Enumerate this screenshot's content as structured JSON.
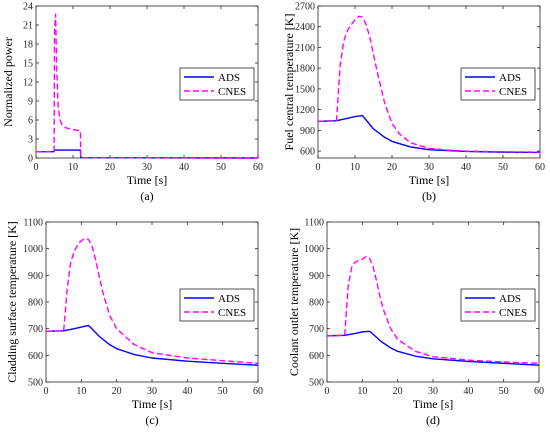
{
  "colors": {
    "ads": "#0000ff",
    "cnes": "#ff00ff",
    "axis": "#262626"
  },
  "legend": {
    "ads": "ADS",
    "cnes": "CNES"
  },
  "chart_data": [
    {
      "type": "line",
      "sublabel": "(a)",
      "xlabel": "Time [s]",
      "ylabel": "Normalized power",
      "xlim": [
        0,
        60
      ],
      "ylim": [
        0,
        24
      ],
      "xticks": [
        "0",
        "10",
        "20",
        "30",
        "40",
        "50",
        "60"
      ],
      "yticks": [
        "0",
        "3",
        "6",
        "9",
        "12",
        "15",
        "18",
        "21",
        "24"
      ],
      "series": [
        {
          "name": "ADS",
          "style": "solid",
          "x": [
            0,
            4.9,
            5.0,
            12.0,
            12.1,
            60
          ],
          "y": [
            1,
            1,
            1.25,
            1.25,
            0.05,
            0.0
          ]
        },
        {
          "name": "CNES",
          "style": "dashed",
          "x": [
            0,
            4.9,
            5.0,
            5.3,
            5.6,
            6.0,
            6.5,
            7.0,
            8.0,
            9.0,
            10.0,
            12.0,
            12.1,
            20,
            60
          ],
          "y": [
            1,
            1,
            20,
            22.7,
            14,
            8,
            6,
            5.3,
            4.8,
            4.6,
            4.5,
            4.3,
            0.05,
            0.05,
            0.0
          ]
        }
      ]
    },
    {
      "type": "line",
      "sublabel": "(b)",
      "xlabel": "Time [s]",
      "ylabel": "Fuel central temperature [K]",
      "xlim": [
        0,
        60
      ],
      "ylim": [
        500,
        2700
      ],
      "xticks": [
        "0",
        "10",
        "20",
        "30",
        "40",
        "50",
        "60"
      ],
      "yticks": [
        "600",
        "900",
        "1200",
        "1500",
        "1800",
        "2100",
        "2400",
        "2700"
      ],
      "series": [
        {
          "name": "ADS",
          "style": "solid",
          "x": [
            0,
            5,
            8,
            10,
            12,
            13,
            15,
            18,
            20,
            25,
            30,
            40,
            50,
            60
          ],
          "y": [
            1030,
            1040,
            1075,
            1100,
            1115,
            1050,
            920,
            800,
            740,
            660,
            620,
            595,
            585,
            580
          ]
        },
        {
          "name": "CNES",
          "style": "dashed",
          "x": [
            0,
            5,
            6,
            7,
            8,
            9,
            10,
            11,
            12,
            13,
            14,
            15,
            16,
            18,
            20,
            22,
            25,
            30,
            35,
            40,
            50,
            60
          ],
          "y": [
            1030,
            1040,
            1850,
            2200,
            2350,
            2430,
            2500,
            2550,
            2540,
            2430,
            2250,
            2000,
            1750,
            1300,
            1000,
            850,
            720,
            640,
            615,
            600,
            590,
            585
          ]
        }
      ]
    },
    {
      "type": "line",
      "sublabel": "(c)",
      "xlabel": "Time [s]",
      "ylabel": "Cladding surface temperature [K]",
      "xlim": [
        0,
        60
      ],
      "ylim": [
        500,
        1100
      ],
      "xticks": [
        "0",
        "10",
        "20",
        "30",
        "40",
        "50",
        "60"
      ],
      "yticks": [
        "500",
        "600",
        "700",
        "800",
        "900",
        "1000",
        "1100"
      ],
      "series": [
        {
          "name": "ADS",
          "style": "solid",
          "x": [
            0,
            5,
            8,
            10,
            12,
            13,
            15,
            18,
            20,
            25,
            30,
            40,
            50,
            60
          ],
          "y": [
            690,
            692,
            700,
            706,
            712,
            700,
            672,
            640,
            625,
            603,
            590,
            578,
            570,
            563
          ]
        },
        {
          "name": "CNES",
          "style": "dashed",
          "x": [
            0,
            5,
            6,
            7,
            8,
            9,
            10,
            11,
            12,
            13,
            14,
            15,
            16,
            18,
            20,
            25,
            30,
            40,
            50,
            60
          ],
          "y": [
            690,
            692,
            850,
            950,
            990,
            1015,
            1030,
            1038,
            1035,
            1010,
            960,
            900,
            840,
            750,
            700,
            640,
            610,
            590,
            580,
            570
          ]
        }
      ]
    },
    {
      "type": "line",
      "sublabel": "(d)",
      "xlabel": "Time [s]",
      "ylabel": "Coolant outlet temperature [K]",
      "xlim": [
        0,
        60
      ],
      "ylim": [
        500,
        1100
      ],
      "xticks": [
        "0",
        "10",
        "20",
        "30",
        "40",
        "50",
        "60"
      ],
      "yticks": [
        "500",
        "600",
        "700",
        "800",
        "900",
        "1000",
        "1100"
      ],
      "series": [
        {
          "name": "ADS",
          "style": "solid",
          "x": [
            0,
            5,
            8,
            10,
            12,
            13,
            15,
            18,
            20,
            25,
            30,
            40,
            50,
            60
          ],
          "y": [
            673,
            675,
            682,
            688,
            690,
            680,
            655,
            628,
            615,
            597,
            587,
            577,
            570,
            563
          ]
        },
        {
          "name": "CNES",
          "style": "dashed",
          "x": [
            0,
            5,
            6,
            7,
            8,
            9,
            10,
            11,
            12,
            13,
            14,
            15,
            16,
            18,
            20,
            25,
            30,
            40,
            50,
            60
          ],
          "y": [
            673,
            675,
            860,
            930,
            950,
            955,
            960,
            970,
            965,
            935,
            880,
            820,
            770,
            700,
            660,
            615,
            595,
            582,
            575,
            570
          ]
        }
      ]
    }
  ]
}
